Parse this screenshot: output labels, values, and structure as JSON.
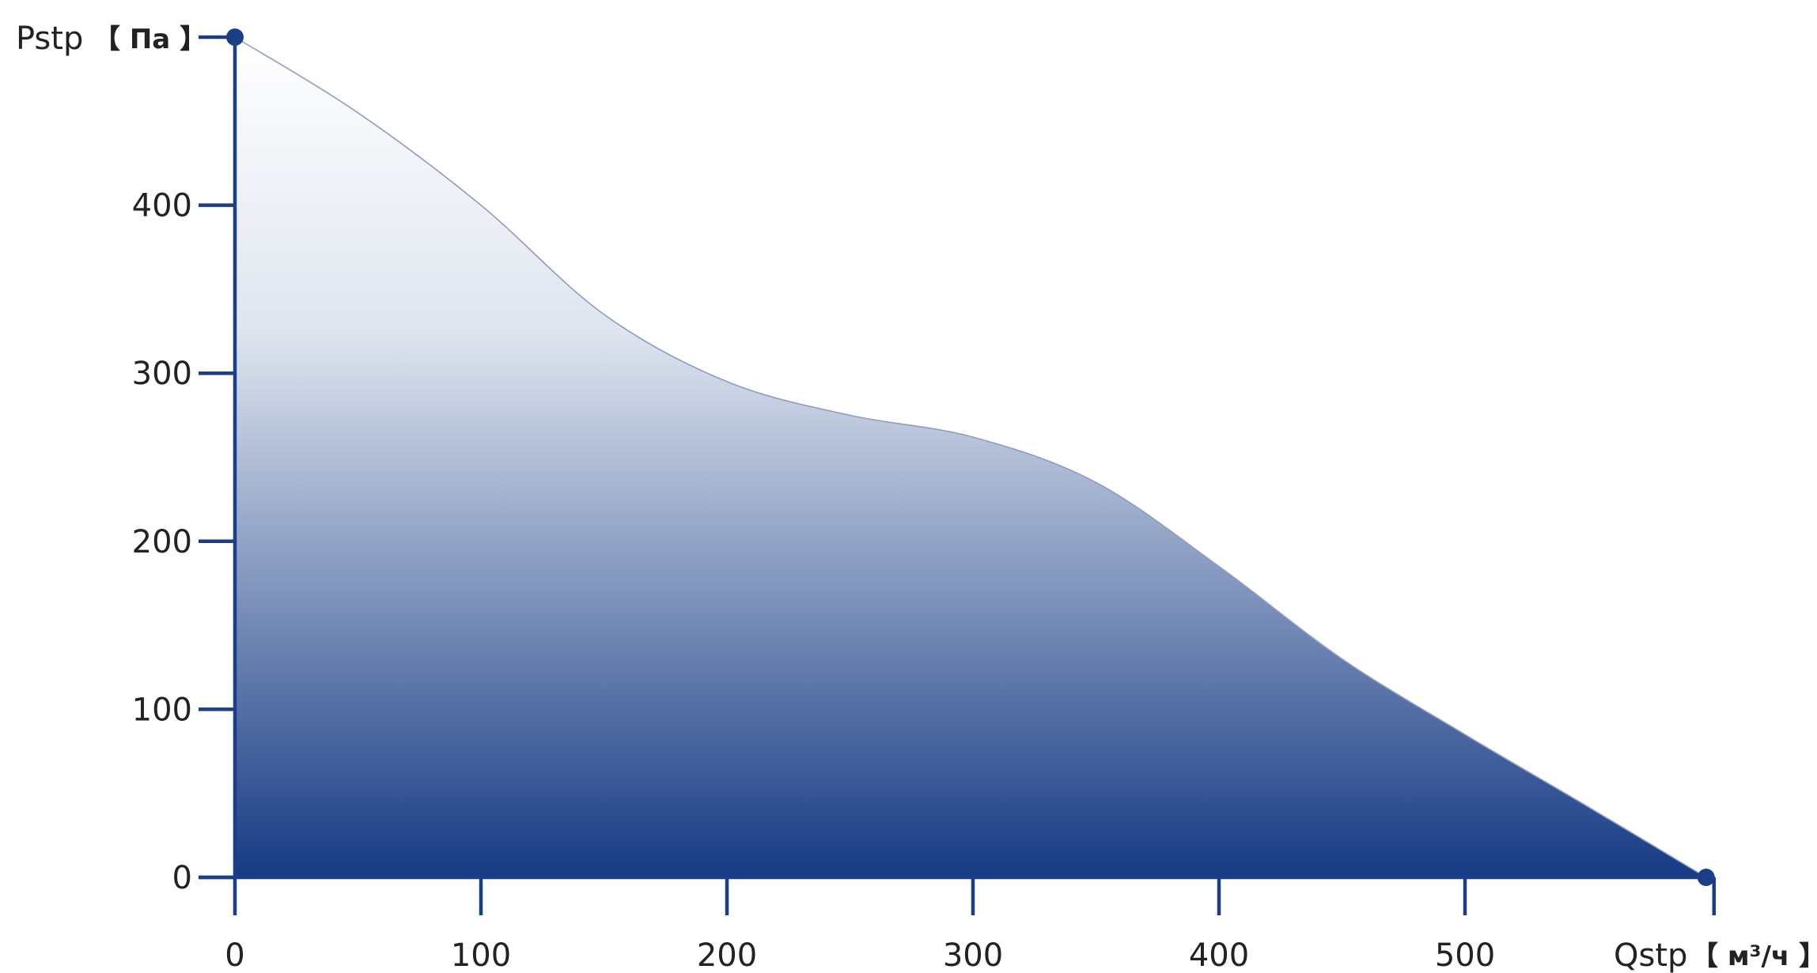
{
  "chart_data": {
    "type": "area",
    "title": "",
    "x_axis": {
      "label": "Qstp",
      "unit": "【 м³/ч 】",
      "range": [
        0,
        600
      ],
      "ticks": [
        0,
        100,
        200,
        300,
        400,
        500
      ]
    },
    "y_axis": {
      "label": "Pstp",
      "unit": "【 Па 】",
      "range": [
        0,
        500
      ],
      "ticks": [
        0,
        100,
        200,
        300,
        400
      ]
    },
    "grid": false,
    "legend": "none",
    "series": [
      {
        "x": [
          0,
          50,
          100,
          150,
          200,
          250,
          300,
          350,
          400,
          450,
          500,
          550,
          598
        ],
        "y": [
          500,
          455,
          400,
          335,
          295,
          275,
          262,
          235,
          185,
          130,
          85,
          42,
          0
        ]
      }
    ],
    "colors": {
      "axis": "#1b3f87",
      "fill_bottom": "#163a84",
      "fill_top": "#ffffff",
      "curve": "#8f9cc0"
    }
  }
}
